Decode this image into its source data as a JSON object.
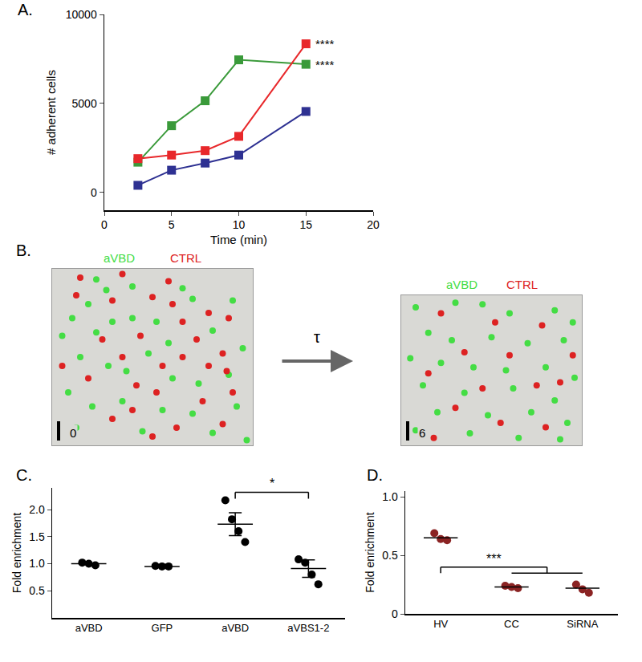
{
  "chart_data": [
    {
      "type": "line",
      "panel_label": "A.",
      "x_label": "Time (min)",
      "y_label": "# adherent cells",
      "xlim": [
        0,
        20
      ],
      "xticks": [
        0,
        5,
        10,
        15,
        20
      ],
      "ylim": [
        -1000,
        10000
      ],
      "yticks": [
        0,
        5000,
        10000
      ],
      "marker": "square",
      "x": [
        2.5,
        5,
        7.5,
        10,
        15
      ],
      "series": [
        {
          "color": "#3a9a3a",
          "values": [
            1700,
            3750,
            5150,
            7450,
            7200
          ]
        },
        {
          "color": "#e8282b",
          "values": [
            1900,
            2100,
            2350,
            3150,
            8350
          ]
        },
        {
          "color": "#2e3192",
          "values": [
            400,
            1250,
            1650,
            2100,
            4550
          ]
        }
      ],
      "annotations": [
        {
          "text": "****",
          "x": 15,
          "y": 8350
        },
        {
          "text": "****",
          "x": 15,
          "y": 7200
        }
      ]
    },
    {
      "type": "scatter",
      "panel_label": "B.",
      "frame": 0,
      "tick_labels": false,
      "xlim": [
        0,
        100
      ],
      "ylim": [
        100,
        0
      ],
      "series": [
        {
          "name": "aVBD",
          "color": "#44dd44",
          "x": [
            22,
            27,
            40,
            65,
            70,
            90,
            18,
            10,
            5,
            22,
            30,
            40,
            52,
            58,
            80,
            95,
            14,
            28,
            48,
            37,
            60,
            73,
            88,
            8,
            20,
            35,
            55,
            70,
            92,
            12,
            45,
            80,
            97
          ],
          "values": [
            6,
            12,
            10,
            11,
            17,
            18,
            20,
            28,
            38,
            36,
            30,
            28,
            30,
            42,
            35,
            45,
            50,
            55,
            48,
            58,
            62,
            65,
            60,
            70,
            78,
            75,
            80,
            82,
            78,
            90,
            92,
            93,
            97
          ]
        },
        {
          "name": "CTRL",
          "color": "#dd2222",
          "x": [
            14,
            35,
            58,
            12,
            30,
            50,
            60,
            78,
            88,
            25,
            44,
            65,
            72,
            85,
            35,
            55,
            65,
            18,
            42,
            78,
            87,
            52,
            30,
            62,
            85,
            90,
            75,
            50,
            40,
            5
          ],
          "values": [
            5,
            3,
            7,
            15,
            18,
            16,
            20,
            25,
            28,
            40,
            38,
            30,
            40,
            48,
            50,
            55,
            50,
            62,
            66,
            55,
            58,
            70,
            85,
            90,
            88,
            70,
            75,
            95,
            80,
            55
          ]
        }
      ]
    },
    {
      "type": "scatter",
      "frame": 6,
      "arrow_label": "τ",
      "tick_labels": false,
      "xlim": [
        0,
        100
      ],
      "ylim": [
        100,
        0
      ],
      "series": [
        {
          "name": "aVBD",
          "color": "#44dd44",
          "x": [
            8,
            30,
            45,
            60,
            85,
            95,
            15,
            28,
            50,
            70,
            90,
            5,
            22,
            40,
            58,
            80,
            96,
            12,
            35,
            62,
            85,
            20,
            48,
            72,
            92,
            8,
            38,
            65,
            88
          ],
          "values": [
            8,
            5,
            6,
            12,
            10,
            18,
            25,
            30,
            28,
            32,
            30,
            42,
            45,
            48,
            50,
            48,
            55,
            60,
            65,
            62,
            70,
            78,
            80,
            78,
            85,
            90,
            92,
            95,
            96
          ]
        },
        {
          "name": "CTRL",
          "color": "#dd2222",
          "x": [
            22,
            52,
            78,
            35,
            95,
            15,
            60,
            45,
            75,
            30,
            88,
            55,
            18,
            80
          ],
          "values": [
            12,
            18,
            20,
            38,
            40,
            52,
            40,
            62,
            60,
            75,
            58,
            85,
            95,
            88
          ]
        }
      ]
    },
    {
      "type": "dot",
      "panel_label": "C.",
      "y_label": "Fold enrichment",
      "color": "#000000",
      "categories": [
        "aVBD",
        "GFP",
        "aVBD",
        "aVBS1-2"
      ],
      "points": [
        [
          1.02,
          1.0,
          0.97
        ],
        [
          0.96,
          0.95,
          0.95
        ],
        [
          2.17,
          1.82,
          1.6,
          1.4
        ],
        [
          1.08,
          1.02,
          0.8,
          0.62
        ]
      ],
      "means": [
        1.0,
        0.95,
        1.73,
        0.91
      ],
      "errors": [
        0,
        0,
        0.21,
        0.16
      ],
      "ylim": [
        0,
        2.4
      ],
      "yticks": [
        0.5,
        {
          "value": 1,
          "label": "1.0"
        },
        1.5,
        {
          "value": 2,
          "label": "2.0"
        }
      ],
      "significance": [
        {
          "from": [
            2
          ],
          "to": [
            3
          ],
          "text": "*",
          "y": 2.32
        }
      ]
    },
    {
      "type": "dot",
      "panel_label": "D.",
      "y_label": "Fold enrichment",
      "color": "#8b2323",
      "categories": [
        "HV",
        "CC",
        "SiRNA"
      ],
      "points": [
        [
          0.69,
          0.64,
          0.63
        ],
        [
          0.24,
          0.23,
          0.22
        ],
        [
          0.25,
          0.21,
          0.18
        ]
      ],
      "means": [
        0.65,
        0.23,
        0.22
      ],
      "ylim": [
        0,
        1.05
      ],
      "yticks": [
        0,
        0.5,
        {
          "value": 1,
          "label": "1.0"
        }
      ],
      "significance": [
        {
          "from": [
            0
          ],
          "to": [
            1,
            2
          ],
          "text": "***",
          "y": 0.4
        }
      ]
    }
  ]
}
